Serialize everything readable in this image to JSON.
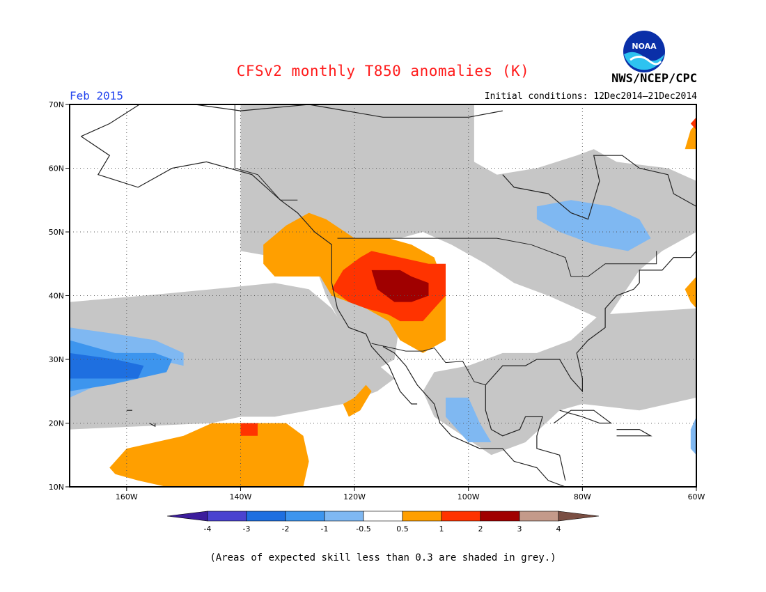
{
  "title": "CFSv2 monthly T850 anomalies (K)",
  "period": "Feb 2015",
  "initial_conditions": "Initial conditions: 12Dec2014–21Dec2014",
  "agency": "NWS/NCEP/CPC",
  "logo_text": "NOAA",
  "note": "(Areas of expected skill less than 0.3 are shaded in grey.)",
  "map": {
    "lon_range": [
      -170,
      -60
    ],
    "lat_range": [
      10,
      70
    ],
    "lat_ticks": [
      70,
      60,
      50,
      40,
      30,
      20,
      10
    ],
    "lat_labels": [
      "70N",
      "60N",
      "50N",
      "40N",
      "30N",
      "20N",
      "10N"
    ],
    "lon_ticks": [
      -160,
      -140,
      -120,
      -100,
      -80,
      -60
    ],
    "lon_labels": [
      "160W",
      "140W",
      "120W",
      "100W",
      "80W",
      "60W"
    ]
  },
  "colorbar": {
    "labels": [
      "-4",
      "-3",
      "-2",
      "-1",
      "-0.5",
      "0.5",
      "1",
      "2",
      "3",
      "4"
    ],
    "colors": [
      "#3c1d9c",
      "#4a43d0",
      "#1e6fe0",
      "#3d95ee",
      "#7fb8f2",
      "#ffffff",
      "#ff9f00",
      "#ff3300",
      "#a00000",
      "#c49a8a",
      "#7a4e42"
    ]
  },
  "colors": {
    "grey": "#c6c6c6",
    "o05": "#ff9f00",
    "o1": "#ff3300",
    "o2": "#a00000",
    "b05": "#7fb8f2",
    "b1": "#3d95ee",
    "b2": "#1e6fe0"
  },
  "regions": [
    {
      "cat": "grey",
      "pts": [
        [
          -170,
          70
        ],
        [
          -140,
          70
        ],
        [
          -140,
          47
        ],
        [
          -127,
          45
        ],
        [
          -125,
          40
        ],
        [
          -122,
          35
        ],
        [
          -120,
          30
        ],
        [
          -117,
          28
        ],
        [
          -113,
          30
        ],
        [
          -112,
          36
        ],
        [
          -118,
          48
        ],
        [
          -116,
          49
        ],
        [
          -112,
          49
        ],
        [
          -108,
          50
        ],
        [
          -103,
          48
        ],
        [
          -97,
          45
        ],
        [
          -92,
          42
        ],
        [
          -86,
          40
        ],
        [
          -76,
          36
        ],
        [
          -70,
          44
        ],
        [
          -66,
          47
        ],
        [
          -60,
          50
        ],
        [
          -60,
          58
        ],
        [
          -65,
          60
        ],
        [
          -74,
          61
        ],
        [
          -78,
          63
        ],
        [
          -81,
          62
        ],
        [
          -88,
          60
        ],
        [
          -95,
          59
        ],
        [
          -99,
          61
        ],
        [
          -99,
          70
        ]
      ]
    },
    {
      "cat": "grey",
      "pts": [
        [
          -60,
          38
        ],
        [
          -60,
          24
        ],
        [
          -70,
          22
        ],
        [
          -80,
          23
        ],
        [
          -84,
          22
        ],
        [
          -90,
          17
        ],
        [
          -96,
          15
        ],
        [
          -101,
          18
        ],
        [
          -106,
          21
        ],
        [
          -108,
          25
        ],
        [
          -106,
          28
        ],
        [
          -100,
          29
        ],
        [
          -94,
          31
        ],
        [
          -88,
          31
        ],
        [
          -82,
          33
        ],
        [
          -77,
          37
        ]
      ]
    },
    {
      "cat": "grey",
      "pts": [
        [
          -145,
          41
        ],
        [
          -157,
          40
        ],
        [
          -170,
          39
        ],
        [
          -170,
          19
        ],
        [
          -145,
          20
        ],
        [
          -140,
          21
        ],
        [
          -134,
          21
        ],
        [
          -128,
          22
        ],
        [
          -122,
          23
        ],
        [
          -116,
          25
        ],
        [
          -113,
          27
        ],
        [
          -117,
          30
        ],
        [
          -121,
          34
        ],
        [
          -124,
          38
        ],
        [
          -128,
          41
        ],
        [
          -134,
          42
        ]
      ]
    },
    {
      "cat": "o05",
      "pts": [
        [
          -132,
          51
        ],
        [
          -128,
          53
        ],
        [
          -125,
          52
        ],
        [
          -120,
          49
        ],
        [
          -114,
          49
        ],
        [
          -110,
          48
        ],
        [
          -106,
          46
        ],
        [
          -104,
          41
        ],
        [
          -104,
          37
        ],
        [
          -104,
          33
        ],
        [
          -108,
          31
        ],
        [
          -112,
          33
        ],
        [
          -114,
          36
        ],
        [
          -116,
          37
        ],
        [
          -118,
          38
        ],
        [
          -124,
          40
        ],
        [
          -126,
          43
        ],
        [
          -130,
          43
        ],
        [
          -134,
          43
        ],
        [
          -136,
          45
        ],
        [
          -136,
          48
        ]
      ]
    },
    {
      "cat": "o05",
      "pts": [
        [
          -153,
          10
        ],
        [
          -158,
          11
        ],
        [
          -162,
          12
        ],
        [
          -163,
          13
        ],
        [
          -160,
          16
        ],
        [
          -155,
          17
        ],
        [
          -150,
          18
        ],
        [
          -145,
          20
        ],
        [
          -138,
          20
        ],
        [
          -132,
          20
        ],
        [
          -129,
          18
        ],
        [
          -128,
          14
        ],
        [
          -129,
          10
        ]
      ]
    },
    {
      "cat": "o05",
      "pts": [
        [
          -122,
          23
        ],
        [
          -120,
          24
        ],
        [
          -118,
          26
        ],
        [
          -117,
          25
        ],
        [
          -119,
          22
        ],
        [
          -121,
          21
        ]
      ]
    },
    {
      "cat": "o05",
      "pts": [
        [
          -60,
          67
        ],
        [
          -60,
          63
        ],
        [
          -62,
          63
        ],
        [
          -61,
          66
        ]
      ]
    },
    {
      "cat": "o05",
      "pts": [
        [
          -60,
          43
        ],
        [
          -60,
          38
        ],
        [
          -61,
          39
        ],
        [
          -62,
          41
        ]
      ]
    },
    {
      "cat": "o1",
      "pts": [
        [
          -117,
          47
        ],
        [
          -112,
          46
        ],
        [
          -107,
          45
        ],
        [
          -104,
          45
        ],
        [
          -104,
          40
        ],
        [
          -106,
          38
        ],
        [
          -108,
          36
        ],
        [
          -112,
          36
        ],
        [
          -114,
          37
        ],
        [
          -118,
          38
        ],
        [
          -121,
          39
        ],
        [
          -124,
          41
        ],
        [
          -122,
          44
        ],
        [
          -119,
          46
        ]
      ]
    },
    {
      "cat": "o1",
      "pts": [
        [
          -140,
          20
        ],
        [
          -137,
          20
        ],
        [
          -137,
          18
        ],
        [
          -140,
          18
        ]
      ]
    },
    {
      "cat": "o1",
      "pts": [
        [
          -60,
          68
        ],
        [
          -60,
          66
        ],
        [
          -61,
          67
        ]
      ]
    },
    {
      "cat": "o2",
      "pts": [
        [
          -117,
          44
        ],
        [
          -112,
          44
        ],
        [
          -110,
          43
        ],
        [
          -107,
          42
        ],
        [
          -107,
          40
        ],
        [
          -110,
          39
        ],
        [
          -113,
          39
        ],
        [
          -116,
          41
        ]
      ]
    },
    {
      "cat": "b05",
      "pts": [
        [
          -170,
          35
        ],
        [
          -162,
          34
        ],
        [
          -155,
          33
        ],
        [
          -150,
          31
        ],
        [
          -150,
          29
        ],
        [
          -155,
          30
        ],
        [
          -160,
          27
        ],
        [
          -165,
          26
        ],
        [
          -170,
          24
        ]
      ]
    },
    {
      "cat": "b05",
      "pts": [
        [
          -88,
          54
        ],
        [
          -82,
          55
        ],
        [
          -75,
          54
        ],
        [
          -70,
          52
        ],
        [
          -68,
          49
        ],
        [
          -72,
          47
        ],
        [
          -78,
          48
        ],
        [
          -84,
          50
        ],
        [
          -88,
          52
        ]
      ]
    },
    {
      "cat": "b05",
      "pts": [
        [
          -104,
          24
        ],
        [
          -100,
          24
        ],
        [
          -98,
          20
        ],
        [
          -96,
          17
        ],
        [
          -100,
          17
        ],
        [
          -104,
          21
        ]
      ]
    },
    {
      "cat": "b05",
      "pts": [
        [
          -60,
          21
        ],
        [
          -61,
          19
        ],
        [
          -61,
          16
        ],
        [
          -60,
          15
        ]
      ]
    },
    {
      "cat": "b1",
      "pts": [
        [
          -170,
          33
        ],
        [
          -162,
          31
        ],
        [
          -155,
          31
        ],
        [
          -152,
          30
        ],
        [
          -153,
          28
        ],
        [
          -158,
          27
        ],
        [
          -163,
          26
        ],
        [
          -170,
          25
        ]
      ]
    },
    {
      "cat": "b2",
      "pts": [
        [
          -170,
          31
        ],
        [
          -162,
          30
        ],
        [
          -157,
          29
        ],
        [
          -158,
          27
        ],
        [
          -165,
          27
        ],
        [
          -170,
          27
        ]
      ]
    }
  ],
  "coast": [
    [
      [
        -168,
        65
      ],
      [
        -163,
        67
      ],
      [
        -156,
        71
      ],
      [
        -140,
        69
      ],
      [
        -128,
        70
      ],
      [
        -115,
        68
      ],
      [
        -100,
        68
      ],
      [
        -94,
        69
      ]
    ],
    [
      [
        -168,
        65
      ],
      [
        -163,
        62
      ],
      [
        -165,
        59
      ],
      [
        -158,
        57
      ],
      [
        -152,
        60
      ],
      [
        -146,
        61
      ],
      [
        -138,
        59
      ],
      [
        -133,
        55
      ],
      [
        -130,
        53
      ],
      [
        -127,
        50
      ],
      [
        -124,
        48
      ],
      [
        -124,
        46
      ],
      [
        -124,
        42
      ],
      [
        -123,
        38
      ],
      [
        -121,
        35
      ],
      [
        -118,
        34
      ],
      [
        -117,
        32
      ],
      [
        -114,
        29
      ],
      [
        -112,
        25
      ],
      [
        -110,
        23
      ],
      [
        -109,
        23
      ]
    ],
    [
      [
        -115,
        32
      ],
      [
        -113,
        31
      ],
      [
        -111,
        29
      ],
      [
        -109,
        26
      ],
      [
        -106,
        23
      ],
      [
        -105,
        20
      ],
      [
        -103,
        18
      ],
      [
        -98,
        16
      ],
      [
        -94,
        16
      ],
      [
        -92,
        14
      ],
      [
        -88,
        13
      ],
      [
        -86,
        11
      ],
      [
        -83,
        10
      ]
    ],
    [
      [
        -97,
        26
      ],
      [
        -97,
        22
      ],
      [
        -96,
        19
      ],
      [
        -94,
        18
      ],
      [
        -91,
        19
      ],
      [
        -90,
        21
      ],
      [
        -87,
        21
      ],
      [
        -88,
        18
      ],
      [
        -88,
        16
      ],
      [
        -84,
        15
      ],
      [
        -83,
        11
      ]
    ],
    [
      [
        -97,
        26
      ],
      [
        -94,
        29
      ],
      [
        -90,
        29
      ],
      [
        -88,
        30
      ],
      [
        -84,
        30
      ],
      [
        -82,
        27
      ],
      [
        -80,
        25
      ],
      [
        -80,
        27
      ],
      [
        -81,
        31
      ],
      [
        -79,
        33
      ],
      [
        -76,
        35
      ],
      [
        -76,
        38
      ],
      [
        -74,
        40
      ],
      [
        -71,
        41
      ],
      [
        -70,
        42
      ],
      [
        -70,
        44
      ],
      [
        -66,
        44
      ],
      [
        -64,
        46
      ],
      [
        -61,
        46
      ],
      [
        -60,
        47
      ]
    ],
    [
      [
        -94,
        59
      ],
      [
        -92,
        57
      ],
      [
        -86,
        56
      ],
      [
        -82,
        53
      ],
      [
        -79,
        52
      ],
      [
        -78,
        55
      ],
      [
        -77,
        58
      ],
      [
        -78,
        62
      ],
      [
        -73,
        62
      ],
      [
        -70,
        60
      ],
      [
        -65,
        59
      ],
      [
        -64,
        56
      ],
      [
        -60,
        54
      ]
    ],
    [
      [
        -85,
        20
      ],
      [
        -82,
        22
      ],
      [
        -78,
        22
      ],
      [
        -75,
        20
      ],
      [
        -77,
        20
      ],
      [
        -80,
        21
      ],
      [
        -84,
        22
      ]
    ],
    [
      [
        -74,
        19
      ],
      [
        -70,
        19
      ],
      [
        -68,
        18
      ],
      [
        -70,
        18
      ],
      [
        -74,
        18
      ]
    ],
    [
      [
        -160,
        22
      ],
      [
        -159,
        22
      ]
    ],
    [
      [
        -156,
        20
      ],
      [
        -155,
        19.5
      ],
      [
        -155,
        20
      ]
    ]
  ],
  "borders": [
    [
      [
        -141,
        70
      ],
      [
        -141,
        60
      ],
      [
        -137,
        59
      ],
      [
        -133,
        55
      ],
      [
        -130,
        55
      ]
    ],
    [
      [
        -123,
        49
      ],
      [
        -95,
        49
      ],
      [
        -89,
        48
      ],
      [
        -83,
        46
      ],
      [
        -82,
        43
      ],
      [
        -79,
        43
      ],
      [
        -76,
        45
      ],
      [
        -71,
        45
      ],
      [
        -67,
        45
      ],
      [
        -67,
        47
      ]
    ],
    [
      [
        -117,
        32.5
      ],
      [
        -111,
        31.3
      ],
      [
        -108,
        31.3
      ],
      [
        -106,
        31.8
      ],
      [
        -104,
        29.5
      ],
      [
        -101,
        29.7
      ],
      [
        -99,
        26.5
      ],
      [
        -97,
        26
      ]
    ]
  ]
}
